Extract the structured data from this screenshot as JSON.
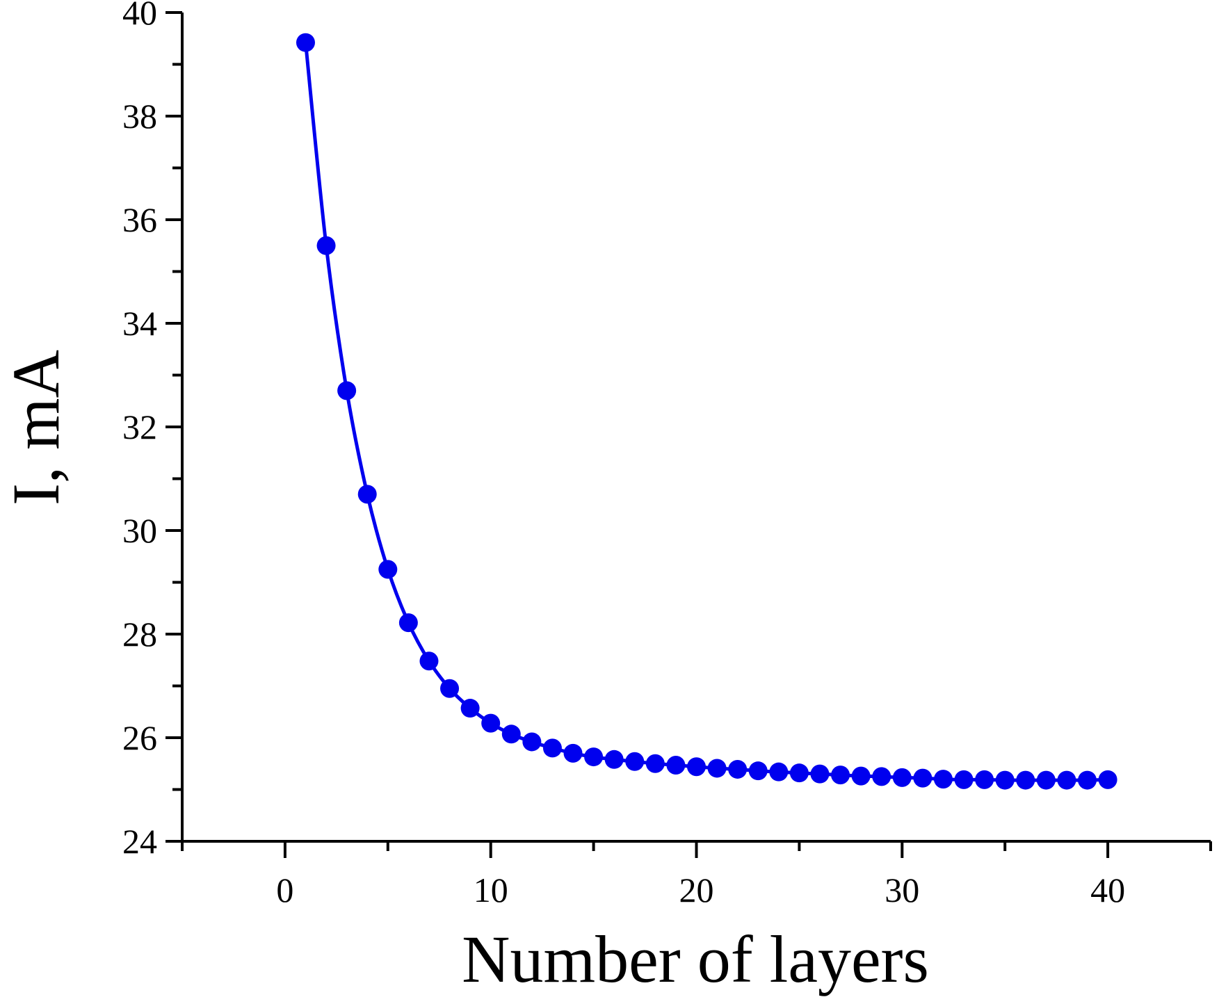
{
  "chart_data": {
    "type": "line",
    "title": "",
    "xlabel": "Number of layers",
    "ylabel": "I, mA",
    "xlim": [
      -5,
      45
    ],
    "ylim": [
      24,
      40
    ],
    "x_ticks": [
      0,
      10,
      20,
      30,
      40
    ],
    "y_ticks": [
      24,
      26,
      28,
      30,
      32,
      34,
      36,
      38,
      40
    ],
    "grid": false,
    "legend": "none",
    "series": [
      {
        "color": "#0000ee",
        "marker": "circle",
        "x": [
          1,
          2,
          3,
          4,
          5,
          6,
          7,
          8,
          9,
          10,
          11,
          12,
          13,
          14,
          15,
          16,
          17,
          18,
          19,
          20,
          21,
          22,
          23,
          24,
          25,
          26,
          27,
          28,
          29,
          30,
          31,
          32,
          33,
          34,
          35,
          36,
          37,
          38,
          39,
          40
        ],
        "y": [
          39.42,
          35.5,
          32.7,
          30.7,
          29.25,
          28.22,
          27.48,
          26.95,
          26.57,
          26.28,
          26.07,
          25.92,
          25.8,
          25.7,
          25.63,
          25.58,
          25.54,
          25.5,
          25.47,
          25.44,
          25.41,
          25.39,
          25.36,
          25.34,
          25.32,
          25.3,
          25.28,
          25.26,
          25.25,
          25.23,
          25.22,
          25.2,
          25.19,
          25.19,
          25.18,
          25.18,
          25.18,
          25.18,
          25.18,
          25.19
        ]
      }
    ]
  }
}
